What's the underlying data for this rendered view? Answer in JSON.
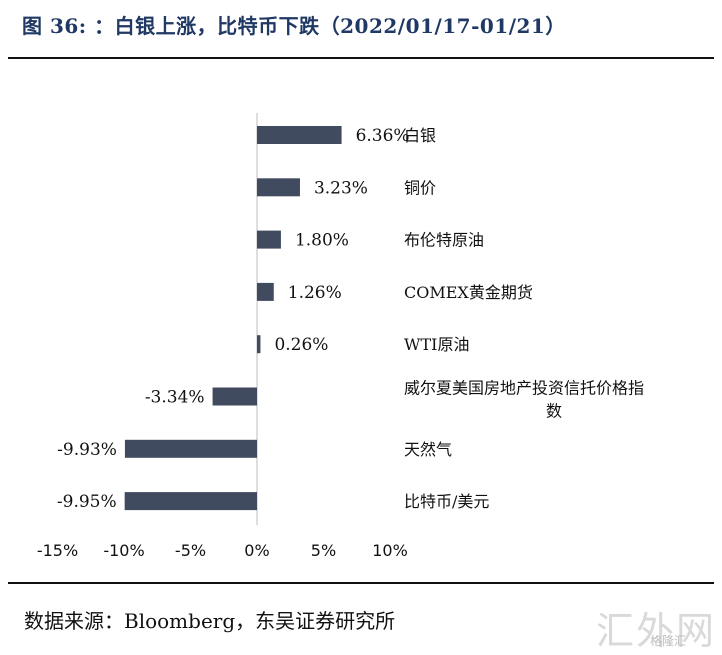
{
  "title": "图 36: ：白银上涨，比特币下跌（2022/01/17-01/21）",
  "source": "数据来源：Bloomberg，东吴证券研究所",
  "watermark": "汇外网",
  "watermark_sub": "格隆汇",
  "chart_data": {
    "type": "bar",
    "orientation": "horizontal",
    "categories": [
      "白银",
      "铜价",
      "布伦特原油",
      "COMEX黄金期货",
      "WTI原油",
      "威尔夏美国房地产投资信托价格指数",
      "天然气",
      "比特币/美元"
    ],
    "category_lines": [
      [
        "白银"
      ],
      [
        "铜价"
      ],
      [
        "布伦特原油"
      ],
      [
        "COMEX黄金期货"
      ],
      [
        "WTI原油"
      ],
      [
        "威尔夏美国房地产投资信托价格指",
        "数"
      ],
      [
        "天然气"
      ],
      [
        "比特币/美元"
      ]
    ],
    "values": [
      6.36,
      3.23,
      1.8,
      1.26,
      0.26,
      -3.34,
      -9.93,
      -9.95
    ],
    "labels": [
      "6.36%",
      "3.23%",
      "1.80%",
      "1.26%",
      "0.26%",
      "-3.34%",
      "-9.93%",
      "-9.95%"
    ],
    "xlim": [
      -15,
      10
    ],
    "xticks": [
      -15,
      -10,
      -5,
      0,
      5,
      10
    ],
    "xtick_labels": [
      "-15%",
      "-10%",
      "-5%",
      "0%",
      "5%",
      "10%"
    ],
    "bar_color": "#414b5f",
    "grid": false,
    "legend": "none"
  }
}
